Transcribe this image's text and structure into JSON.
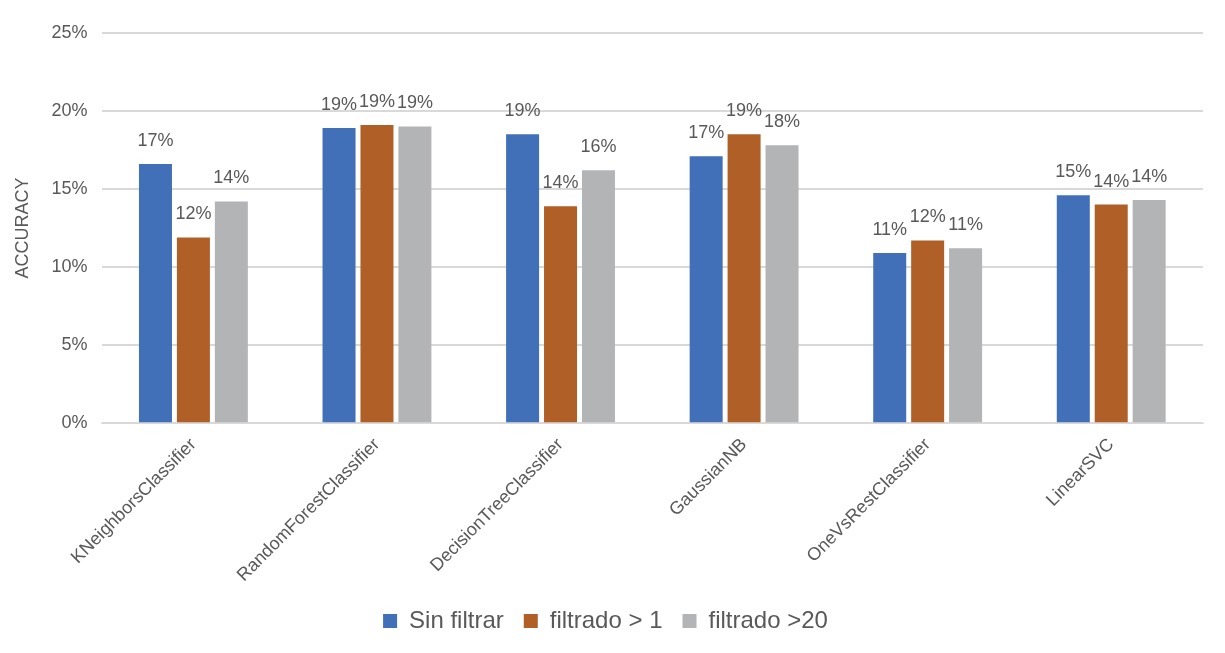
{
  "chart_data": {
    "type": "bar",
    "ylabel": "ACCURACY",
    "categories": [
      "KNeighborsClassifier",
      "RandomForestClassifier",
      "DecisionTreeClassifier",
      "GaussianNB",
      "OneVsRestClassifier",
      "LinearSVC"
    ],
    "series": [
      {
        "name": "Sin filtrar",
        "color": "#4170b8",
        "values": [
          16.6,
          18.9,
          18.5,
          17.1,
          10.9,
          14.6
        ],
        "value_labels": [
          "17%",
          "19%",
          "19%",
          "17%",
          "11%",
          "15%"
        ]
      },
      {
        "name": "filtrado > 1",
        "color": "#b06027",
        "values": [
          11.9,
          19.1,
          13.9,
          18.5,
          11.7,
          14.0
        ],
        "value_labels": [
          "12%",
          "19%",
          "14%",
          "19%",
          "12%",
          "14%"
        ]
      },
      {
        "name": "filtrado >20",
        "color": "#b3b4b6",
        "values": [
          14.2,
          19.0,
          16.2,
          17.8,
          11.2,
          14.3
        ],
        "value_labels": [
          "14%",
          "19%",
          "16%",
          "18%",
          "11%",
          "14%"
        ]
      }
    ],
    "ylim": [
      0,
      25
    ],
    "yticks": [
      {
        "value": 0,
        "label": "0%"
      },
      {
        "value": 5,
        "label": "5%"
      },
      {
        "value": 10,
        "label": "10%"
      },
      {
        "value": 15,
        "label": "15%"
      },
      {
        "value": 20,
        "label": "20%"
      },
      {
        "value": 25,
        "label": "25%"
      }
    ],
    "grid": "y",
    "legend": "bottom"
  }
}
